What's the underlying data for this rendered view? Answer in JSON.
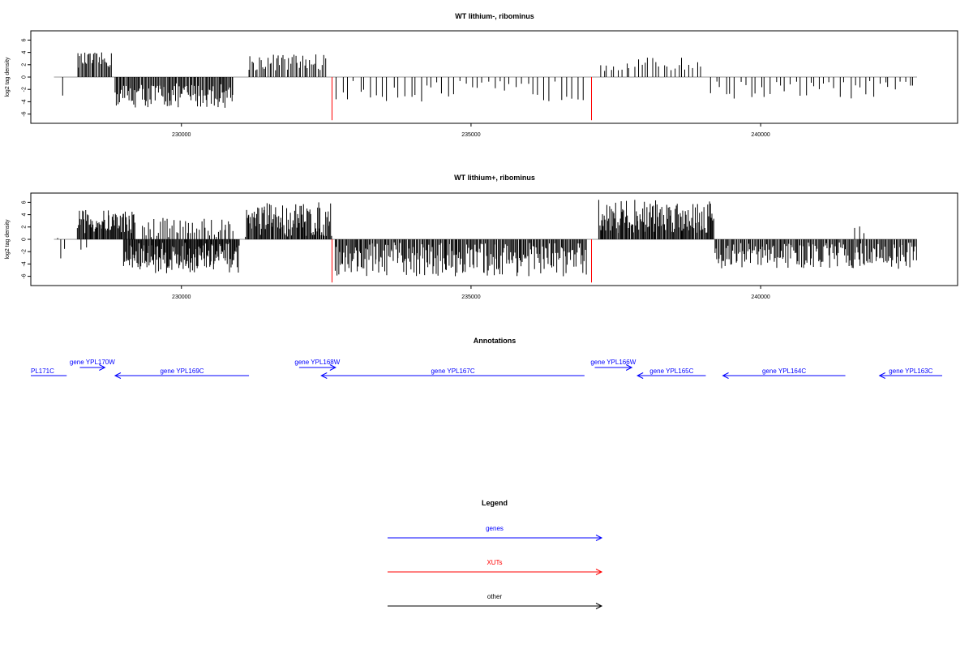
{
  "colors": {
    "gene": "#0000ff",
    "xut": "#ff0000",
    "other": "#000000",
    "axis": "#000000"
  },
  "chart_data": [
    {
      "type": "bar",
      "title": "WT lithium-, ribominus",
      "ylabel": "log2 tag density",
      "xlim": [
        227400,
        243400
      ],
      "ylim": [
        -7.5,
        7.5
      ],
      "x_ticks": [
        {
          "value": 230000,
          "label": "230000"
        },
        {
          "value": 235000,
          "label": "235000"
        },
        {
          "value": 240000,
          "label": "240000"
        }
      ],
      "y_ticks": [
        {
          "value": 6,
          "label": "6"
        },
        {
          "value": 4,
          "label": "4"
        },
        {
          "value": 2,
          "label": "2"
        },
        {
          "value": 0,
          "label": "0"
        },
        {
          "value": -2,
          "label": "-2"
        },
        {
          "value": -4,
          "label": "-4"
        },
        {
          "value": -6,
          "label": "-6"
        }
      ],
      "baseline": {
        "from": 227800,
        "to": 242700
      },
      "segments": [
        {
          "from": 227950,
          "to": 227950,
          "min": -3,
          "max": -3,
          "count": 1
        },
        {
          "from": 228200,
          "to": 228800,
          "min": 1.5,
          "max": 4,
          "count": 30
        },
        {
          "from": 228850,
          "to": 230900,
          "min": -5,
          "max": -1,
          "count": 110
        },
        {
          "from": 231150,
          "to": 232500,
          "min": 1,
          "max": 3.8,
          "count": 45
        },
        {
          "from": 232650,
          "to": 237000,
          "min": -4,
          "max": -0.6,
          "count": 45
        },
        {
          "from": 237200,
          "to": 239000,
          "min": 1,
          "max": 3.2,
          "count": 28
        },
        {
          "from": 239100,
          "to": 242700,
          "min": -3.5,
          "max": -0.6,
          "count": 42
        }
      ],
      "red_bars": [
        {
          "x": 232600,
          "value": -7
        },
        {
          "x": 237080,
          "value": -7
        }
      ]
    },
    {
      "type": "bar",
      "title": "WT lithium+, ribominus",
      "ylabel": "log2 tag density",
      "xlim": [
        227400,
        243400
      ],
      "ylim": [
        -7.5,
        7.5
      ],
      "x_ticks": [
        {
          "value": 230000,
          "label": "230000"
        },
        {
          "value": 235000,
          "label": "235000"
        },
        {
          "value": 240000,
          "label": "240000"
        }
      ],
      "y_ticks": [
        {
          "value": 6,
          "label": "6"
        },
        {
          "value": 4,
          "label": "4"
        },
        {
          "value": 2,
          "label": "2"
        },
        {
          "value": 0,
          "label": "0"
        },
        {
          "value": -2,
          "label": "-2"
        },
        {
          "value": -4,
          "label": "-4"
        },
        {
          "value": -6,
          "label": "-6"
        }
      ],
      "baseline": {
        "from": 227800,
        "to": 242700
      },
      "segments": [
        {
          "from": 227850,
          "to": 228000,
          "min": -3.5,
          "max": 2,
          "count": 3
        },
        {
          "from": 228250,
          "to": 228400,
          "min": -2,
          "max": -1,
          "count": 2
        },
        {
          "from": 228200,
          "to": 229200,
          "min": 1,
          "max": 4.8,
          "count": 70
        },
        {
          "from": 229000,
          "to": 231000,
          "min": -5.5,
          "max": -0.5,
          "count": 150
        },
        {
          "from": 229300,
          "to": 230900,
          "min": 0.3,
          "max": 3.5,
          "count": 45
        },
        {
          "from": 231100,
          "to": 232600,
          "min": 0.3,
          "max": 6,
          "count": 100
        },
        {
          "from": 232650,
          "to": 237000,
          "min": -6,
          "max": -0.5,
          "count": 240
        },
        {
          "from": 237200,
          "to": 239200,
          "min": 1,
          "max": 6.5,
          "count": 130
        },
        {
          "from": 239200,
          "to": 242700,
          "min": -4.8,
          "max": -0.5,
          "count": 180
        },
        {
          "from": 241600,
          "to": 241800,
          "min": 1,
          "max": 3.2,
          "count": 3
        }
      ],
      "red_bars": [
        {
          "x": 232600,
          "value": -7
        },
        {
          "x": 237080,
          "value": -7
        }
      ]
    }
  ],
  "annotations": {
    "title": "Annotations",
    "xlim": [
      227400,
      243400
    ],
    "genes": [
      {
        "label": "PL171C",
        "start": 227400,
        "end": 228030,
        "dir": "left",
        "row": "low",
        "label_pos": "start"
      },
      {
        "label": "gene YPL170W",
        "start": 228260,
        "end": 228700,
        "dir": "right",
        "row": "high",
        "label_pos": "center"
      },
      {
        "label": "gene YPL169C",
        "start": 228880,
        "end": 231230,
        "dir": "left",
        "row": "low",
        "label_pos": "center"
      },
      {
        "label": "gene YPL168W",
        "start": 232110,
        "end": 232750,
        "dir": "right",
        "row": "high",
        "label_pos": "center"
      },
      {
        "label": "gene YPL167C",
        "start": 232500,
        "end": 237120,
        "dir": "left",
        "row": "low",
        "label_pos": "center"
      },
      {
        "label": "gene YPL166W",
        "start": 237300,
        "end": 237950,
        "dir": "right",
        "row": "high",
        "label_pos": "center"
      },
      {
        "label": "gene YPL165C",
        "start": 238050,
        "end": 239250,
        "dir": "left",
        "row": "low",
        "label_pos": "center"
      },
      {
        "label": "gene YPL164C",
        "start": 239550,
        "end": 241700,
        "dir": "left",
        "row": "low",
        "label_pos": "center"
      },
      {
        "label": "gene YPL163C",
        "start": 242300,
        "end": 243400,
        "dir": "left",
        "row": "low",
        "label_pos": "center"
      }
    ]
  },
  "legend": {
    "title": "Legend",
    "items": [
      {
        "label": "genes",
        "color": "#0000ff"
      },
      {
        "label": "XUTs",
        "color": "#ff0000"
      },
      {
        "label": "other",
        "color": "#000000"
      }
    ]
  }
}
